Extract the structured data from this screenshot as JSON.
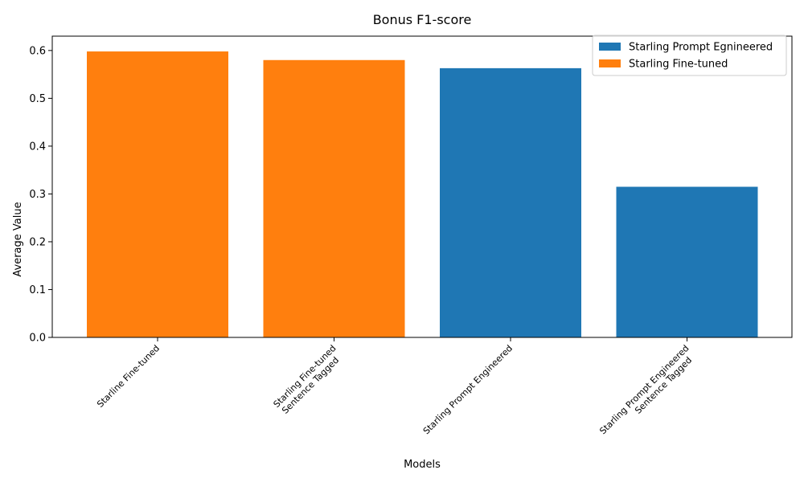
{
  "chart_data": {
    "type": "bar",
    "title": "Bonus F1-score",
    "xlabel": "Models",
    "ylabel": "Average Value",
    "ylim": [
      0,
      0.63
    ],
    "yticks": [
      "0.0",
      "0.1",
      "0.2",
      "0.3",
      "0.4",
      "0.5",
      "0.6"
    ],
    "categories": [
      [
        "Starline Fine-tuned"
      ],
      [
        "Starling Fine-tuned",
        "Sentence Tagged"
      ],
      [
        "Starling Prompt Engineered"
      ],
      [
        "Starling Prompt Engineered",
        "Sentence Tagged"
      ]
    ],
    "values": [
      0.598,
      0.58,
      0.563,
      0.315
    ],
    "bar_series": [
      1,
      1,
      0,
      0
    ],
    "series": [
      {
        "name": "Starling Prompt Egnineered",
        "color": "#1f77b4"
      },
      {
        "name": "Starling Fine-tuned",
        "color": "#ff7f0e"
      }
    ],
    "legend_position": "top-right",
    "grid": false
  }
}
